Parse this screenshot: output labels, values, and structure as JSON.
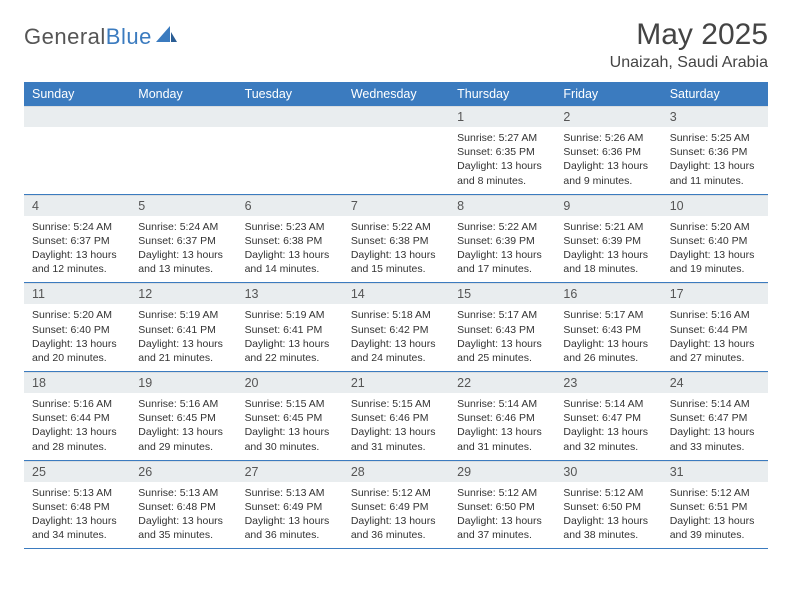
{
  "logo": {
    "word1": "General",
    "word2": "Blue"
  },
  "title": "May 2025",
  "subtitle": "Unaizah, Saudi Arabia",
  "colors": {
    "header_bg": "#3b7bbf",
    "header_text": "#ffffff",
    "daynum_bg": "#e9edef",
    "row_border": "#3b7bbf",
    "text": "#333333",
    "logo_gray": "#555555",
    "logo_blue": "#3b7bbf",
    "background": "#ffffff"
  },
  "typography": {
    "title_fontsize": 30,
    "subtitle_fontsize": 16,
    "weekday_fontsize": 12.5,
    "daynum_fontsize": 12.5,
    "detail_fontsize": 10.5
  },
  "weekdays": [
    "Sunday",
    "Monday",
    "Tuesday",
    "Wednesday",
    "Thursday",
    "Friday",
    "Saturday"
  ],
  "weeks": [
    [
      {
        "empty": true
      },
      {
        "empty": true
      },
      {
        "empty": true
      },
      {
        "empty": true
      },
      {
        "day": "1",
        "sunrise": "Sunrise: 5:27 AM",
        "sunset": "Sunset: 6:35 PM",
        "daylight": "Daylight: 13 hours and 8 minutes."
      },
      {
        "day": "2",
        "sunrise": "Sunrise: 5:26 AM",
        "sunset": "Sunset: 6:36 PM",
        "daylight": "Daylight: 13 hours and 9 minutes."
      },
      {
        "day": "3",
        "sunrise": "Sunrise: 5:25 AM",
        "sunset": "Sunset: 6:36 PM",
        "daylight": "Daylight: 13 hours and 11 minutes."
      }
    ],
    [
      {
        "day": "4",
        "sunrise": "Sunrise: 5:24 AM",
        "sunset": "Sunset: 6:37 PM",
        "daylight": "Daylight: 13 hours and 12 minutes."
      },
      {
        "day": "5",
        "sunrise": "Sunrise: 5:24 AM",
        "sunset": "Sunset: 6:37 PM",
        "daylight": "Daylight: 13 hours and 13 minutes."
      },
      {
        "day": "6",
        "sunrise": "Sunrise: 5:23 AM",
        "sunset": "Sunset: 6:38 PM",
        "daylight": "Daylight: 13 hours and 14 minutes."
      },
      {
        "day": "7",
        "sunrise": "Sunrise: 5:22 AM",
        "sunset": "Sunset: 6:38 PM",
        "daylight": "Daylight: 13 hours and 15 minutes."
      },
      {
        "day": "8",
        "sunrise": "Sunrise: 5:22 AM",
        "sunset": "Sunset: 6:39 PM",
        "daylight": "Daylight: 13 hours and 17 minutes."
      },
      {
        "day": "9",
        "sunrise": "Sunrise: 5:21 AM",
        "sunset": "Sunset: 6:39 PM",
        "daylight": "Daylight: 13 hours and 18 minutes."
      },
      {
        "day": "10",
        "sunrise": "Sunrise: 5:20 AM",
        "sunset": "Sunset: 6:40 PM",
        "daylight": "Daylight: 13 hours and 19 minutes."
      }
    ],
    [
      {
        "day": "11",
        "sunrise": "Sunrise: 5:20 AM",
        "sunset": "Sunset: 6:40 PM",
        "daylight": "Daylight: 13 hours and 20 minutes."
      },
      {
        "day": "12",
        "sunrise": "Sunrise: 5:19 AM",
        "sunset": "Sunset: 6:41 PM",
        "daylight": "Daylight: 13 hours and 21 minutes."
      },
      {
        "day": "13",
        "sunrise": "Sunrise: 5:19 AM",
        "sunset": "Sunset: 6:41 PM",
        "daylight": "Daylight: 13 hours and 22 minutes."
      },
      {
        "day": "14",
        "sunrise": "Sunrise: 5:18 AM",
        "sunset": "Sunset: 6:42 PM",
        "daylight": "Daylight: 13 hours and 24 minutes."
      },
      {
        "day": "15",
        "sunrise": "Sunrise: 5:17 AM",
        "sunset": "Sunset: 6:43 PM",
        "daylight": "Daylight: 13 hours and 25 minutes."
      },
      {
        "day": "16",
        "sunrise": "Sunrise: 5:17 AM",
        "sunset": "Sunset: 6:43 PM",
        "daylight": "Daylight: 13 hours and 26 minutes."
      },
      {
        "day": "17",
        "sunrise": "Sunrise: 5:16 AM",
        "sunset": "Sunset: 6:44 PM",
        "daylight": "Daylight: 13 hours and 27 minutes."
      }
    ],
    [
      {
        "day": "18",
        "sunrise": "Sunrise: 5:16 AM",
        "sunset": "Sunset: 6:44 PM",
        "daylight": "Daylight: 13 hours and 28 minutes."
      },
      {
        "day": "19",
        "sunrise": "Sunrise: 5:16 AM",
        "sunset": "Sunset: 6:45 PM",
        "daylight": "Daylight: 13 hours and 29 minutes."
      },
      {
        "day": "20",
        "sunrise": "Sunrise: 5:15 AM",
        "sunset": "Sunset: 6:45 PM",
        "daylight": "Daylight: 13 hours and 30 minutes."
      },
      {
        "day": "21",
        "sunrise": "Sunrise: 5:15 AM",
        "sunset": "Sunset: 6:46 PM",
        "daylight": "Daylight: 13 hours and 31 minutes."
      },
      {
        "day": "22",
        "sunrise": "Sunrise: 5:14 AM",
        "sunset": "Sunset: 6:46 PM",
        "daylight": "Daylight: 13 hours and 31 minutes."
      },
      {
        "day": "23",
        "sunrise": "Sunrise: 5:14 AM",
        "sunset": "Sunset: 6:47 PM",
        "daylight": "Daylight: 13 hours and 32 minutes."
      },
      {
        "day": "24",
        "sunrise": "Sunrise: 5:14 AM",
        "sunset": "Sunset: 6:47 PM",
        "daylight": "Daylight: 13 hours and 33 minutes."
      }
    ],
    [
      {
        "day": "25",
        "sunrise": "Sunrise: 5:13 AM",
        "sunset": "Sunset: 6:48 PM",
        "daylight": "Daylight: 13 hours and 34 minutes."
      },
      {
        "day": "26",
        "sunrise": "Sunrise: 5:13 AM",
        "sunset": "Sunset: 6:48 PM",
        "daylight": "Daylight: 13 hours and 35 minutes."
      },
      {
        "day": "27",
        "sunrise": "Sunrise: 5:13 AM",
        "sunset": "Sunset: 6:49 PM",
        "daylight": "Daylight: 13 hours and 36 minutes."
      },
      {
        "day": "28",
        "sunrise": "Sunrise: 5:12 AM",
        "sunset": "Sunset: 6:49 PM",
        "daylight": "Daylight: 13 hours and 36 minutes."
      },
      {
        "day": "29",
        "sunrise": "Sunrise: 5:12 AM",
        "sunset": "Sunset: 6:50 PM",
        "daylight": "Daylight: 13 hours and 37 minutes."
      },
      {
        "day": "30",
        "sunrise": "Sunrise: 5:12 AM",
        "sunset": "Sunset: 6:50 PM",
        "daylight": "Daylight: 13 hours and 38 minutes."
      },
      {
        "day": "31",
        "sunrise": "Sunrise: 5:12 AM",
        "sunset": "Sunset: 6:51 PM",
        "daylight": "Daylight: 13 hours and 39 minutes."
      }
    ]
  ]
}
